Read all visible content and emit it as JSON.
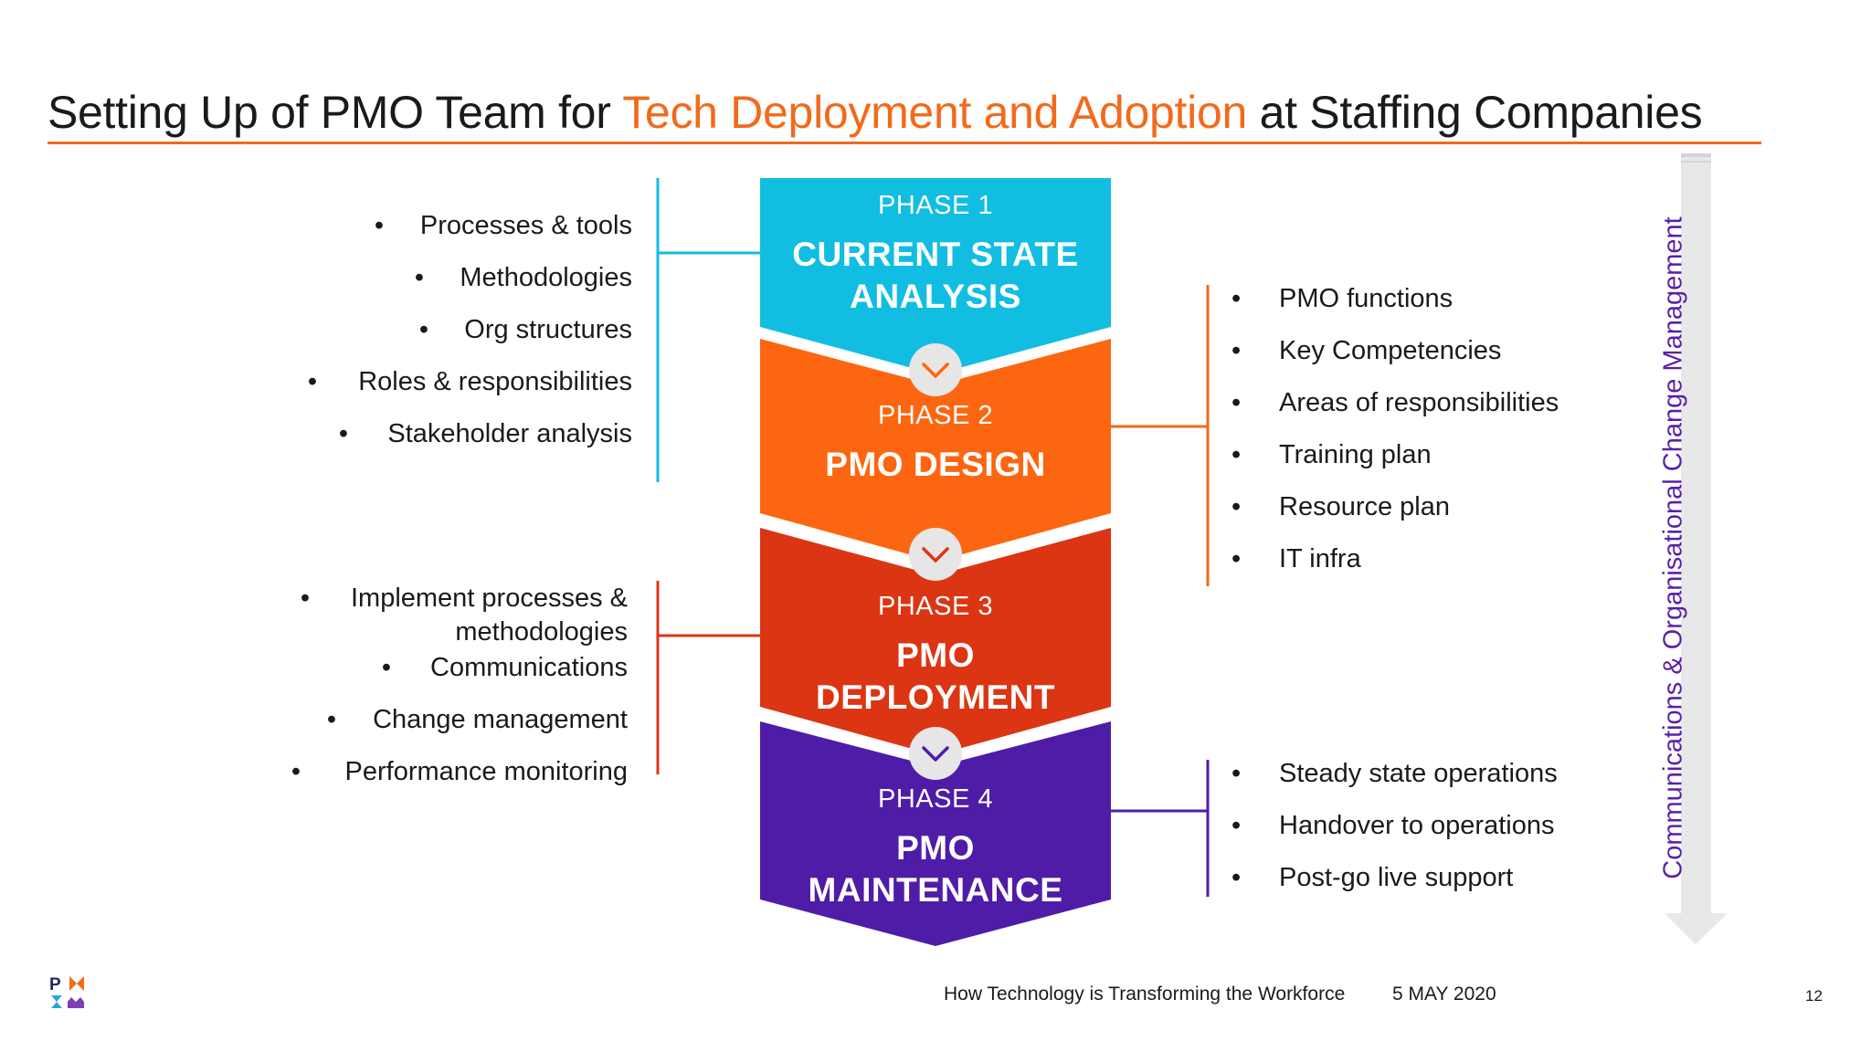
{
  "title": {
    "part1": "Setting Up of PMO Team for ",
    "highlight": "Tech Deployment and Adoption",
    "part2": " at Staffing Companies"
  },
  "colors": {
    "accent_orange": "#ef6a1f",
    "phase1": "#12bde2",
    "phase2": "#fd6610",
    "phase3": "#dc3513",
    "phase4": "#4f1ca7",
    "vertical_label": "#5b1fa8"
  },
  "phases": [
    {
      "label": "PHASE 1",
      "name_line1": "CURRENT STATE",
      "name_line2": "ANALYSIS"
    },
    {
      "label": "PHASE 2",
      "name_line1": "PMO DESIGN",
      "name_line2": ""
    },
    {
      "label": "PHASE 3",
      "name_line1": "PMO",
      "name_line2": "DEPLOYMENT"
    },
    {
      "label": "PHASE 4",
      "name_line1": "PMO",
      "name_line2": "MAINTENANCE"
    }
  ],
  "phase1_items": [
    "Processes & tools",
    "Methodologies",
    "Org structures",
    "Roles & responsibilities",
    "Stakeholder analysis"
  ],
  "phase2_items": [
    "PMO functions",
    "Key Competencies",
    "Areas of responsibilities",
    "Training plan",
    "Resource plan",
    "IT infra"
  ],
  "phase3_items": {
    "first_line1": "Implement processes &",
    "first_line2": "methodologies",
    "rest": [
      "Communications",
      "Change management",
      "Performance monitoring"
    ]
  },
  "phase4_items": [
    "Steady state operations",
    "Handover to operations",
    "Post-go live support"
  ],
  "side_label": "Communications & Organisational Change Management",
  "footer": {
    "presentation": "How Technology is Transforming the Workforce",
    "date": "5 MAY 2020",
    "page_number": "12",
    "logo_text": "PMI"
  },
  "icons": {
    "chevron": "chevron-down-icon",
    "arrow": "arrow-down-icon",
    "logo": "pmi-logo-icon"
  }
}
